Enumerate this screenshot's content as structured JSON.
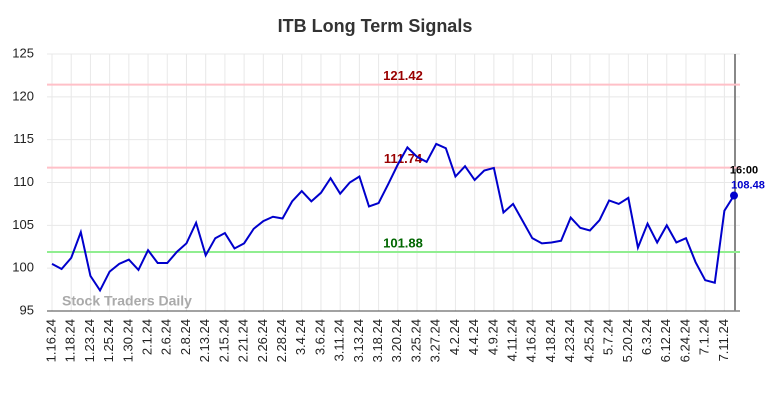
{
  "chart_data": {
    "type": "line",
    "title": "ITB Long Term Signals",
    "watermark": "Stock Traders Daily",
    "categories": [
      "1.16.24",
      null,
      "1.18.24",
      null,
      "1.23.24",
      null,
      "1.25.24",
      null,
      "1.30.24",
      null,
      "2.1.24",
      null,
      "2.6.24",
      null,
      "2.8.24",
      null,
      "2.13.24",
      null,
      "2.15.24",
      null,
      "2.21.24",
      null,
      "2.26.24",
      null,
      "2.28.24",
      null,
      "3.4.24",
      null,
      "3.6.24",
      null,
      "3.11.24",
      null,
      "3.13.24",
      null,
      "3.18.24",
      null,
      "3.20.24",
      null,
      "3.25.24",
      null,
      "3.27.24",
      null,
      "4.2.24",
      null,
      "4.4.24",
      null,
      "4.9.24",
      null,
      "4.11.24",
      null,
      "4.16.24",
      null,
      "4.18.24",
      null,
      "4.23.24",
      null,
      "4.25.24",
      null,
      "5.7.24",
      null,
      "5.20.24",
      null,
      "6.3.24",
      null,
      "6.12.24",
      null,
      "6.24.24",
      null,
      "7.1.24",
      null,
      "7.11.24",
      null
    ],
    "series": [
      {
        "name": "ITB",
        "color": "#0000cc",
        "values": [
          100.5,
          99.9,
          101.2,
          104.2,
          99.1,
          97.4,
          99.6,
          100.5,
          101.0,
          99.8,
          102.1,
          100.6,
          100.6,
          101.9,
          102.9,
          105.3,
          101.5,
          103.5,
          104.1,
          102.3,
          102.9,
          104.6,
          105.5,
          106.0,
          105.8,
          107.8,
          109.0,
          107.8,
          108.8,
          110.5,
          108.7,
          110.0,
          110.7,
          107.2,
          107.6,
          109.8,
          112.1,
          114.1,
          113.0,
          112.4,
          114.5,
          114.0,
          110.7,
          111.9,
          110.3,
          111.4,
          111.7,
          106.5,
          107.5,
          105.5,
          103.5,
          102.9,
          103.0,
          103.2,
          105.9,
          104.7,
          104.4,
          105.6,
          107.9,
          107.5,
          108.2,
          102.4,
          105.2,
          103.0,
          105.0,
          103.0,
          103.5,
          100.7,
          98.6,
          98.3,
          106.7,
          108.48
        ]
      }
    ],
    "hlines": [
      {
        "value": 121.42,
        "color": "#ffc0c8",
        "label_color": "#990000"
      },
      {
        "value": 111.74,
        "color": "#ffc0c8",
        "label_color": "#990000"
      },
      {
        "value": 101.88,
        "color": "#90ee90",
        "label_color": "#006600"
      }
    ],
    "last_time": "16:00",
    "ylim": [
      95,
      125
    ],
    "yticks": [
      95,
      100,
      105,
      110,
      115,
      120,
      125
    ],
    "grid": true
  }
}
